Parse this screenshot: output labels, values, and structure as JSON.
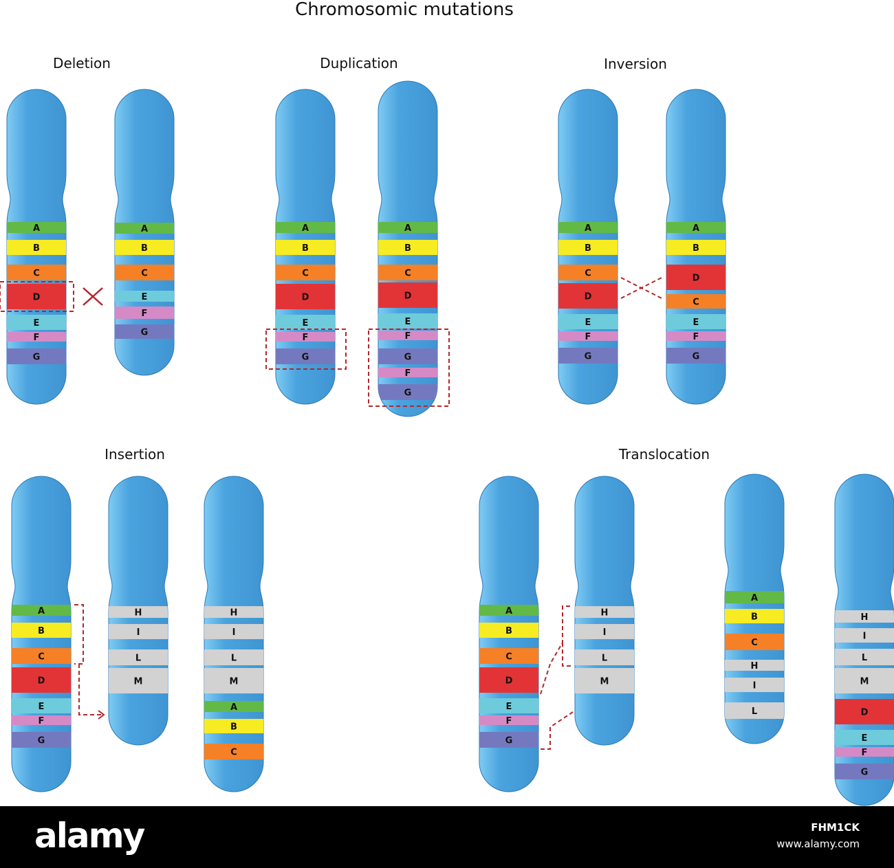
{
  "title": "Chromosomic mutations",
  "panels": {
    "deletion": "Deletion",
    "duplication": "Duplication",
    "inversion": "Inversion",
    "insertion": "Insertion",
    "translocation": "Translocation"
  },
  "band_colors": {
    "A": "#62b946",
    "B": "#f7eb22",
    "C": "#f58026",
    "D": "#e23437",
    "E": "#6ecbdb",
    "F": "#d58ac6",
    "G": "#7479bf",
    "H": "#d2d2d2",
    "I": "#d2d2d2",
    "L": "#d2d2d2",
    "M": "#d2d2d2"
  },
  "chromosome_color": "#4a9fdb",
  "chromosomes": [
    {
      "id": "deletion-original",
      "bands": [
        "A",
        "B",
        "C",
        "D",
        "E",
        "F",
        "G"
      ]
    },
    {
      "id": "deletion-mutant",
      "bands": [
        "A",
        "B",
        "C",
        "E",
        "F",
        "G"
      ]
    },
    {
      "id": "duplication-original",
      "bands": [
        "A",
        "B",
        "C",
        "D",
        "E",
        "F",
        "G"
      ]
    },
    {
      "id": "duplication-mutant",
      "bands": [
        "A",
        "B",
        "C",
        "D",
        "E",
        "F",
        "G",
        "F",
        "G"
      ]
    },
    {
      "id": "inversion-original",
      "bands": [
        "A",
        "B",
        "C",
        "D",
        "E",
        "F",
        "G"
      ]
    },
    {
      "id": "inversion-mutant",
      "bands": [
        "A",
        "B",
        "D",
        "C",
        "E",
        "F",
        "G"
      ]
    },
    {
      "id": "insertion-donor",
      "bands": [
        "A",
        "B",
        "C",
        "D",
        "E",
        "F",
        "G"
      ]
    },
    {
      "id": "insertion-recipient",
      "bands": [
        "H",
        "I",
        "L",
        "M"
      ]
    },
    {
      "id": "insertion-result",
      "bands": [
        "H",
        "I",
        "L",
        "M",
        "A",
        "B",
        "C"
      ]
    },
    {
      "id": "translocation-original-1",
      "bands": [
        "A",
        "B",
        "C",
        "D",
        "E",
        "F",
        "G"
      ]
    },
    {
      "id": "translocation-original-2",
      "bands": [
        "H",
        "I",
        "L",
        "M"
      ]
    },
    {
      "id": "translocation-result-1",
      "bands": [
        "A",
        "B",
        "C",
        "H",
        "I",
        "L"
      ]
    },
    {
      "id": "translocation-result-2",
      "bands": [
        "H",
        "I",
        "L",
        "M",
        "D",
        "E",
        "F",
        "G"
      ]
    }
  ],
  "watermark": {
    "brand": "alamy",
    "image_id": "FHM1CK",
    "url": "www.alamy.com"
  }
}
